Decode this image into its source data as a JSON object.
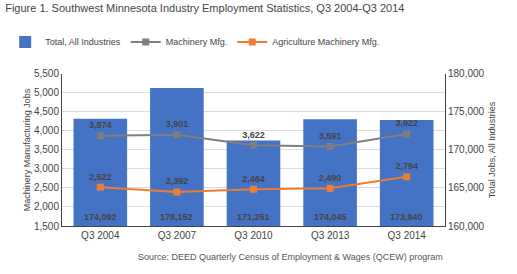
{
  "chart_data": {
    "type": "bar",
    "title": "Figure 1. Southwest Minnesota Industry Employment Statistics, Q3 2004-Q3 2014",
    "categories": [
      "Q3 2004",
      "Q3 2007",
      "Q3 2010",
      "Q3 2013",
      "Q3 2014"
    ],
    "series": [
      {
        "name": "Total, All Industries",
        "type": "bar",
        "color": "#4472C4",
        "axis": "y2",
        "values": [
          174092,
          178152,
          171251,
          174045,
          173940
        ],
        "value_labels": [
          "174,092",
          "178,152",
          "171,251",
          "174,045",
          "173,940"
        ]
      },
      {
        "name": "Machinery Mfg.",
        "type": "line",
        "color": "#7F7F7F",
        "marker": "square",
        "values": [
          3874,
          3901,
          3622,
          3591,
          3922
        ],
        "value_labels": [
          "3,874",
          "3,901",
          "3,622",
          "3,591",
          "3,922"
        ]
      },
      {
        "name": "Agriculture Machinery Mfg.",
        "type": "line",
        "color": "#ED7D31",
        "marker": "square",
        "values": [
          2522,
          2392,
          2464,
          2490,
          2794
        ],
        "value_labels": [
          "2,522",
          "2,392",
          "2,464",
          "2,490",
          "2,794"
        ]
      }
    ],
    "ylabel": "Machinery Manufacturing Jobs",
    "y2label": "Total Jobs, All Industries",
    "ylim": [
      1500,
      5500
    ],
    "yticks": [
      {
        "value": 1500,
        "label": "1,500"
      },
      {
        "value": 2000,
        "label": "2,000"
      },
      {
        "value": 2500,
        "label": "2,500"
      },
      {
        "value": 3000,
        "label": "3,000"
      },
      {
        "value": 3500,
        "label": "3,500"
      },
      {
        "value": 4000,
        "label": "4,000"
      },
      {
        "value": 4500,
        "label": "4,500"
      },
      {
        "value": 5000,
        "label": "5,000"
      },
      {
        "value": 5500,
        "label": "5,500"
      }
    ],
    "y2lim": [
      160000,
      180000
    ],
    "y2ticks": [
      {
        "value": 160000,
        "label": "160,000"
      },
      {
        "value": 165000,
        "label": "165,000"
      },
      {
        "value": 170000,
        "label": "170,000"
      },
      {
        "value": 175000,
        "label": "175,000"
      },
      {
        "value": 180000,
        "label": "180,000"
      }
    ],
    "grid": true,
    "legend": "upper left",
    "data_labels": true,
    "annotations": [
      "Source: DEED Quarterly Census of Employment & Wages (QCEW) program"
    ]
  }
}
